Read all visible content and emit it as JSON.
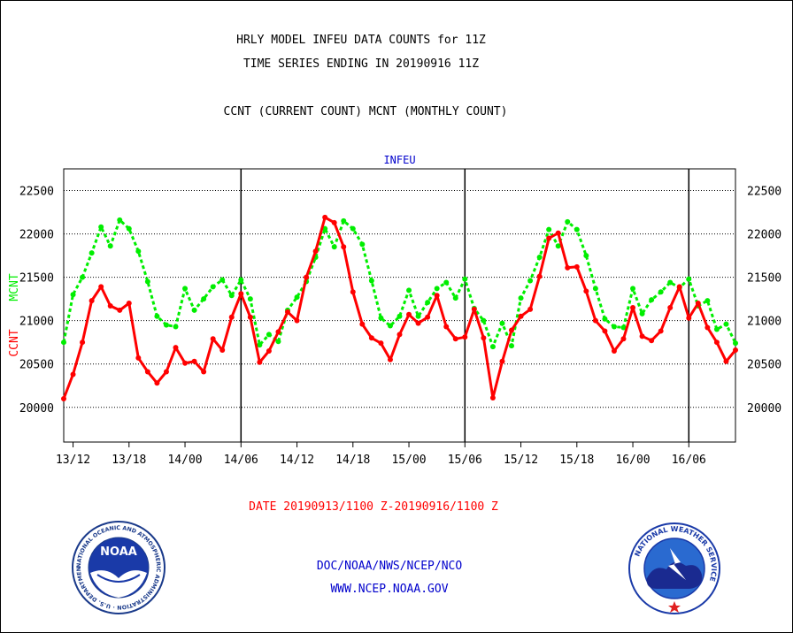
{
  "header": {
    "title_line1": "HRLY MODEL INFEU DATA COUNTS for 11Z",
    "title_line2": "TIME SERIES ENDING IN 20190916 11Z",
    "subtitle": "CCNT (CURRENT COUNT) MCNT (MONTHLY COUNT)"
  },
  "footer": {
    "date_range": "DATE 20190913/1100 Z-20190916/1100 Z",
    "org": "DOC/NOAA/NWS/NCEP/NCO",
    "url": "WWW.NCEP.NOAA.GOV"
  },
  "logos": {
    "noaa": {
      "icon": "noaa-logo",
      "text": "NOAA",
      "ring_text": "NATIONAL OCEANIC AND ATMOSPHERIC ADMINISTRATION · U.S. DEPARTMENT OF COMMERCE"
    },
    "nws": {
      "icon": "national-weather-service-logo",
      "ring_text": "NATIONAL WEATHER SERVICE"
    }
  },
  "colors": {
    "ccnt": "#ff0000",
    "mcnt": "#00ee00",
    "header_text": "#000000",
    "panel_title": "#0000cc",
    "date_text": "#ff0000",
    "footer_text": "#0000cc"
  },
  "chart_data": {
    "type": "line",
    "title": "INFEU",
    "ylabel_left": [
      "CCNT",
      "MCNT"
    ],
    "ylim": [
      19600,
      22750
    ],
    "yticks": [
      20000,
      20500,
      21000,
      21500,
      22000,
      22500
    ],
    "x_start": "20190913/1100",
    "x_end": "20190916/1100",
    "x_hours": 72,
    "xticks": [
      {
        "label": "13/12",
        "hour": 1
      },
      {
        "label": "13/18",
        "hour": 7
      },
      {
        "label": "14/00",
        "hour": 13
      },
      {
        "label": "14/06",
        "hour": 19
      },
      {
        "label": "14/12",
        "hour": 25
      },
      {
        "label": "14/18",
        "hour": 31
      },
      {
        "label": "15/00",
        "hour": 37
      },
      {
        "label": "15/06",
        "hour": 43
      },
      {
        "label": "15/12",
        "hour": 49
      },
      {
        "label": "15/18",
        "hour": 55
      },
      {
        "label": "16/00",
        "hour": 61
      },
      {
        "label": "16/06",
        "hour": 67
      }
    ],
    "vlines": [
      19,
      43,
      67
    ],
    "grid": true,
    "series": [
      {
        "name": "CCNT",
        "color": "#ff0000",
        "style": "solid",
        "values": [
          20100,
          20380,
          20750,
          21230,
          21390,
          21170,
          21120,
          21200,
          20570,
          20410,
          20280,
          20410,
          20690,
          20510,
          20530,
          20410,
          20790,
          20660,
          21040,
          21310,
          21040,
          20520,
          20650,
          20870,
          21100,
          21000,
          21500,
          21800,
          22190,
          22130,
          21850,
          21330,
          20960,
          20800,
          20740,
          20550,
          20840,
          21070,
          20970,
          21040,
          21290,
          20930,
          20790,
          20810,
          21130,
          20800,
          20110,
          20530,
          20890,
          21050,
          21130,
          21510,
          21950,
          22010,
          21610,
          21620,
          21340,
          21000,
          20880,
          20650,
          20790,
          21150,
          20820,
          20770,
          20880,
          21150,
          21390,
          21030,
          21200,
          20920,
          20750,
          20530,
          20660
        ]
      },
      {
        "name": "MCNT",
        "color": "#00ee00",
        "style": "dotted",
        "values": [
          20750,
          21300,
          21500,
          21780,
          22080,
          21860,
          22160,
          22060,
          21800,
          21450,
          21050,
          20950,
          20930,
          21370,
          21120,
          21250,
          21390,
          21470,
          21290,
          21470,
          21250,
          20720,
          20840,
          20760,
          21120,
          21270,
          21450,
          21730,
          22060,
          21850,
          22150,
          22060,
          21880,
          21460,
          21030,
          20940,
          21050,
          21350,
          21050,
          21210,
          21370,
          21440,
          21260,
          21480,
          21140,
          21000,
          20700,
          20970,
          20710,
          21260,
          21460,
          21730,
          22050,
          21860,
          22140,
          22050,
          21750,
          21370,
          21020,
          20930,
          20920,
          21370,
          21080,
          21240,
          21330,
          21440,
          21380,
          21480,
          21170,
          21230,
          20900,
          20960,
          20740
        ]
      }
    ]
  }
}
